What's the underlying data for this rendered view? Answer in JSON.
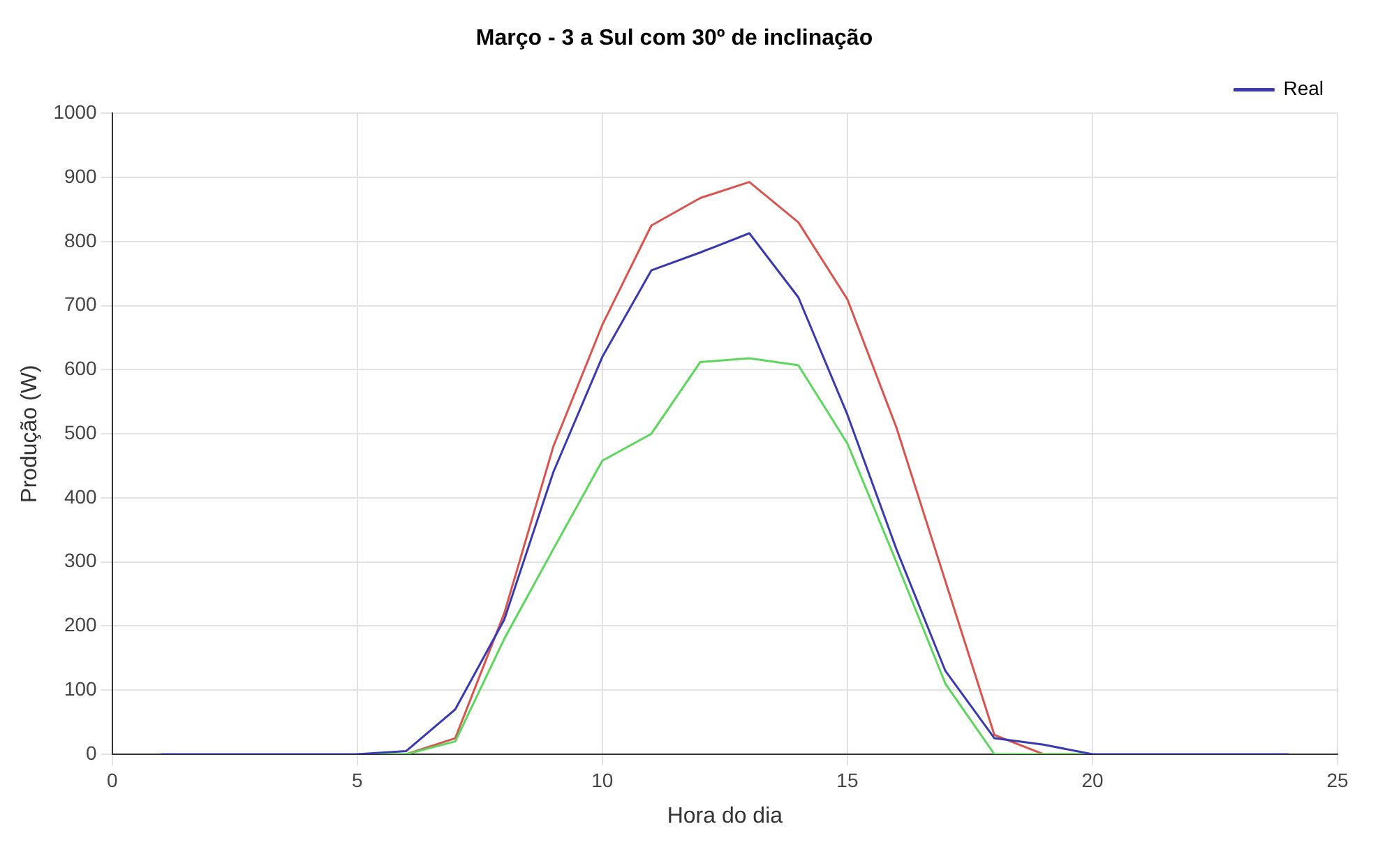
{
  "chart_data": {
    "type": "line",
    "title": "Março - 3 a Sul com 30º de inclinação",
    "xlabel": "Hora do dia",
    "ylabel": "Produção (W)",
    "x": [
      1,
      2,
      3,
      4,
      5,
      6,
      7,
      8,
      9,
      10,
      11,
      12,
      13,
      14,
      15,
      16,
      17,
      18,
      19,
      20,
      21,
      22,
      23,
      24
    ],
    "series": [
      {
        "color": "#d9534f",
        "values": [
          null,
          null,
          null,
          null,
          0,
          0,
          25,
          220,
          480,
          670,
          825,
          868,
          893,
          830,
          710,
          510,
          270,
          30,
          0,
          0,
          null,
          null,
          null,
          null
        ]
      },
      {
        "color": "#5cd65c",
        "values": [
          null,
          null,
          null,
          null,
          0,
          0,
          20,
          180,
          320,
          458,
          500,
          612,
          618,
          607,
          485,
          300,
          110,
          0,
          0,
          0,
          null,
          null,
          null,
          null
        ]
      },
      {
        "name": "Real",
        "color": "#3a3ab0",
        "values": [
          0,
          0,
          0,
          0,
          0,
          5,
          70,
          210,
          440,
          620,
          755,
          783,
          813,
          713,
          530,
          320,
          130,
          25,
          15,
          0,
          0,
          0,
          0,
          0
        ]
      }
    ],
    "xlim": [
      0,
      25
    ],
    "xticks": [
      0,
      5,
      10,
      15,
      20,
      25
    ],
    "ylim": [
      0,
      1000
    ],
    "yticks": [
      0,
      100,
      200,
      300,
      400,
      500,
      600,
      700,
      800,
      900,
      1000
    ],
    "grid": true,
    "legend": "top right",
    "marker": "none",
    "line_style": "solid"
  }
}
